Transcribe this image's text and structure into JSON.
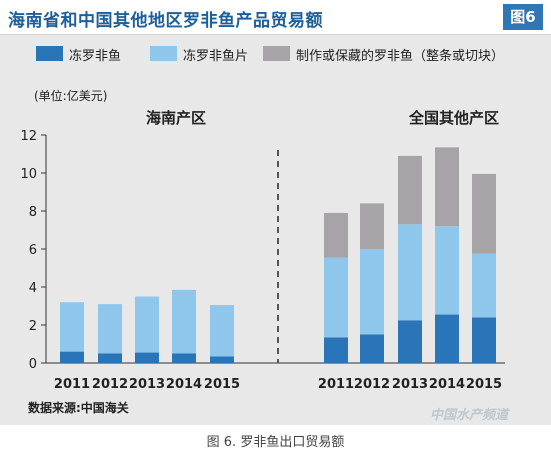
{
  "title": "海南省和中国其他地区罗非鱼产品贸易额",
  "figure_badge": "图6",
  "caption": "图 6. 罗非鱼出口贸易额",
  "watermark": "中国水产频道",
  "colors": {
    "series1": "#2a74b8",
    "series2": "#8fc7ec",
    "series3": "#a6a4a6",
    "title": "#1c5f9a",
    "badge": "#2f76b5"
  },
  "chart_data": {
    "type": "bar",
    "stacked": true,
    "ylabel": "(单位:亿美元)",
    "source": "数据来源:中国海关",
    "ylim": [
      0,
      12
    ],
    "yticks": [
      0,
      2,
      4,
      6,
      8,
      10,
      12
    ],
    "legend_placement": "top",
    "legend": [
      "冻罗非鱼",
      "冻罗非鱼片",
      "制作或保藏的罗非鱼（整条或切块）"
    ],
    "groups": [
      {
        "name": "海南产区",
        "categories": [
          "2011",
          "2012",
          "2013",
          "2014",
          "2015"
        ],
        "series": [
          {
            "name": "冻罗非鱼",
            "values": [
              0.6,
              0.5,
              0.55,
              0.5,
              0.35
            ]
          },
          {
            "name": "冻罗非鱼片",
            "values": [
              2.6,
              2.6,
              2.95,
              3.35,
              2.7
            ]
          },
          {
            "name": "制作或保藏的罗非鱼（整条或切块）",
            "values": [
              0,
              0,
              0,
              0,
              0
            ]
          }
        ]
      },
      {
        "name": "全国其他产区",
        "categories": [
          "2011",
          "2012",
          "2013",
          "2014",
          "2015"
        ],
        "series": [
          {
            "name": "冻罗非鱼",
            "values": [
              1.35,
              1.5,
              2.25,
              2.55,
              2.4
            ]
          },
          {
            "name": "冻罗非鱼片",
            "values": [
              4.2,
              4.5,
              5.05,
              4.65,
              3.35
            ]
          },
          {
            "name": "制作或保藏的罗非鱼（整条或切块）",
            "values": [
              2.35,
              2.4,
              3.6,
              4.15,
              4.2
            ]
          }
        ]
      }
    ]
  }
}
